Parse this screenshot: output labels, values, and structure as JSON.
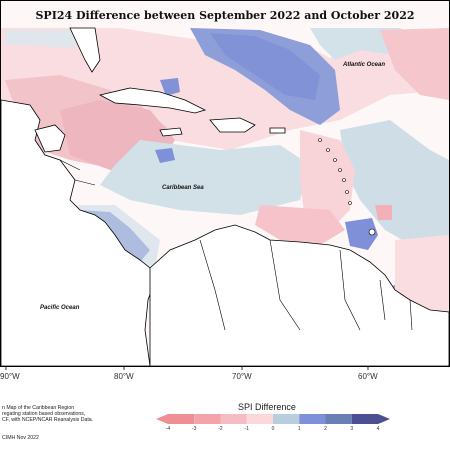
{
  "map": {
    "title": "SPI24 Difference between September 2022 and October 2022",
    "labels": {
      "atlantic": "Atlantic Ocean",
      "caribbean": "Caribbean Sea",
      "pacific": "Pacific Ocean"
    },
    "longitude_ticks": [
      "90°W",
      "80°W",
      "70°W",
      "60°W"
    ],
    "footer_lines": [
      "n Map of the Caribbean Region",
      "regating station based observations,",
      "CF, with NCEP/NCAR Reanalysis Data."
    ],
    "credit": "CIMH Nov 2022"
  },
  "legend": {
    "title": "SPI Difference",
    "ticks": [
      "-4",
      "-3",
      "-2",
      "-1",
      "0",
      "1",
      "2",
      "3",
      "4"
    ],
    "colors": {
      "neg4": "#f08e95",
      "neg3": "#f4a3ab",
      "neg2": "#f6bcc3",
      "neg1": "#fad8dc",
      "zero": "#cfdfe6",
      "pos1": "#b8cedd",
      "pos2": "#7f90d8",
      "pos3": "#6a80b5",
      "pos4": "#4d4f93"
    }
  }
}
